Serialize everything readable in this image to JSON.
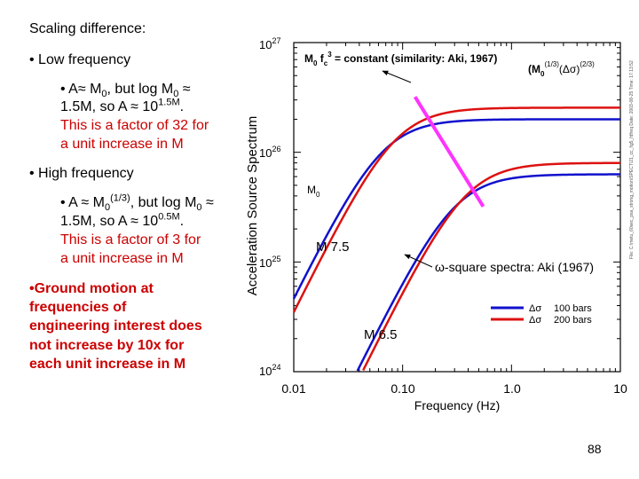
{
  "slide": {
    "heading": "Scaling difference:",
    "low_freq": {
      "bullet": "• Low frequency",
      "l1_a": "• A≈ M",
      "l1_sub": "0",
      "l1_b": ", but log M",
      "l1_sub2": "0",
      "l1_c": " ≈",
      "l2_a": "1.5M, so A ≈ 10",
      "l2_sup": "1.5M",
      "l2_b": ".",
      "red1": "This is a factor of 32 for",
      "red2": "a unit increase in M"
    },
    "high_freq": {
      "bullet": "• High frequency",
      "l1_a": "• A ≈ M",
      "l1_sub": "0",
      "l1_sup": "(1/3)",
      "l1_b": ", but log M",
      "l1_sub2": "0",
      "l1_c": " ≈",
      "l2_a": "1.5M, so A ≈ 10",
      "l2_sup": "0.5M",
      "l2_b": ".",
      "red1": "This is a factor of 3 for",
      "red2": "a unit increase in M"
    },
    "ground_motion": [
      "•Ground motion at",
      "frequencies of",
      "engineering interest does",
      "not increase by 10x for",
      "each unit increase in M"
    ],
    "page_number": "88"
  },
  "chart_data": {
    "type": "line",
    "title": "",
    "xlabel": "Frequency (Hz)",
    "ylabel": "Acceleration Source Spectrum",
    "x_scale": "log",
    "y_scale": "log",
    "xlim": [
      0.01,
      10
    ],
    "ylim": [
      1e+24,
      1e+27
    ],
    "x_ticks": [
      {
        "value": 0.01,
        "label": "0.01"
      },
      {
        "value": 0.1,
        "label": "0.10"
      },
      {
        "value": 1,
        "label": "1.0"
      },
      {
        "value": 10,
        "label": "10"
      }
    ],
    "y_ticks": [
      {
        "value": 1e+24,
        "base": "10",
        "exp": "24"
      },
      {
        "value": 1e+25,
        "base": "10",
        "exp": "25"
      },
      {
        "value": 1e+26,
        "base": "10",
        "exp": "26"
      },
      {
        "value": 1e+27,
        "base": "10",
        "exp": "27"
      }
    ],
    "series": [
      {
        "name": "M 7.5, Δσ 100 bars",
        "color": "#1111cc",
        "plateau": 2e+26,
        "corner_hz": 0.065
      },
      {
        "name": "M 7.5, Δσ 200 bars",
        "color": "#dd1111",
        "plateau": 2.55e+26,
        "corner_hz": 0.085
      },
      {
        "name": "M 6.5, Δσ 100 bars",
        "color": "#1111cc",
        "plateau": 6.3e+25,
        "corner_hz": 0.3
      },
      {
        "name": "M 6.5, Δσ 200 bars",
        "color": "#dd1111",
        "plateau": 8e+25,
        "corner_hz": 0.38
      }
    ],
    "similarity_line": {
      "color": "#ff33ff",
      "from": [
        0.13,
        3.2e+26
      ],
      "to": [
        0.55,
        3.2e+25
      ]
    },
    "annotations": {
      "similarity": "M",
      "similarity_sub": "0",
      "similarity_b": " f",
      "similarity_sub2": "c",
      "similarity_sup": "3",
      "similarity_c": " = constant (similarity: Aki, 1967)",
      "m0_corner": "(M",
      "m0_corner_sub": "0",
      "m0_corner_sup": "(1/3)",
      "m0_corner_b": "(Δσ)",
      "m0_corner_sup2": "(2/3)",
      "m0_label": "M",
      "m0_label_sub": "0",
      "m75": "M 7.5",
      "m65": "M 6.5",
      "omega_square": "ω-square spectra: Aki (1967)",
      "side_note": "File: C:\\metu_60sec_psa_strong_motion\\SPECT\\21_cc_fig5_fdfreq Date: 2003-08-25 Time: 17:13:52"
    },
    "legend": [
      {
        "symbol": "Δσ",
        "value": "100 bars",
        "color": "#1111cc"
      },
      {
        "symbol": "Δσ",
        "value": "200 bars",
        "color": "#dd1111"
      }
    ]
  }
}
